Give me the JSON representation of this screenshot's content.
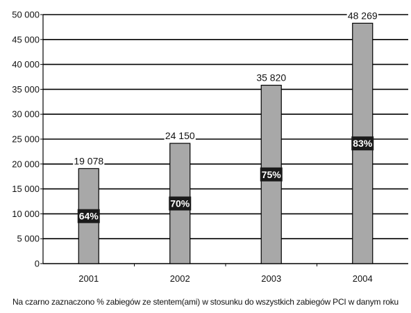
{
  "chart_data": {
    "type": "bar",
    "categories": [
      "2001",
      "2002",
      "2003",
      "2004"
    ],
    "values": [
      19078,
      24150,
      35820,
      48269
    ],
    "value_labels": [
      "19 078",
      "24 150",
      "35 820",
      "48 269"
    ],
    "percent_labels": [
      "64%",
      "70%",
      "75%",
      "83%"
    ],
    "ylim": [
      0,
      50000
    ],
    "yticks": [
      0,
      5000,
      10000,
      15000,
      20000,
      25000,
      30000,
      35000,
      40000,
      45000,
      50000
    ],
    "ytick_labels": [
      "0",
      "5 000",
      "10 000",
      "15 000",
      "20 000",
      "25 000",
      "30 000",
      "35 000",
      "40 000",
      "45 000",
      "50 000"
    ],
    "grid": true,
    "bar_color": "#a8a8a8",
    "percent_box_color": "#1a1a1a"
  },
  "caption": "Na czarno zaznaczono % zabiegów ze stentem(ami) w stosunku do wszystkich zabiegów PCI w danym roku"
}
